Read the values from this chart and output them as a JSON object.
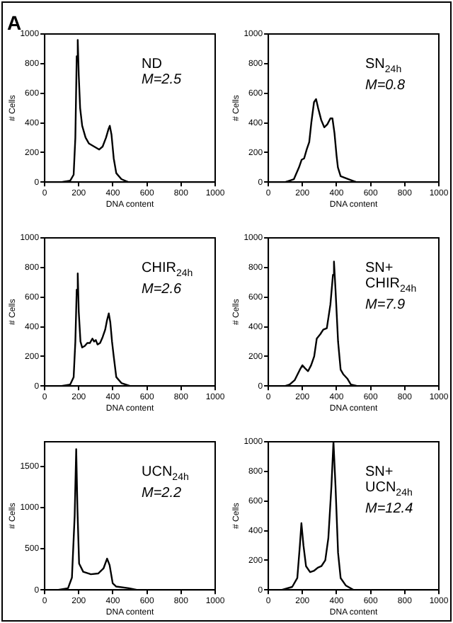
{
  "chart_data": [
    {
      "type": "line",
      "title": "A",
      "xlabel": "DNA content",
      "ylabel": "# Cells",
      "xlim": [
        0,
        1000
      ],
      "xticks": [
        0,
        200,
        400,
        600,
        800,
        1000
      ],
      "ylim": [
        0,
        1000
      ],
      "yticks": [
        0,
        200,
        400,
        600,
        800,
        1000
      ],
      "grid": false,
      "annotations": [
        "ND",
        "M=2.5"
      ],
      "series": [
        {
          "color": "#000000",
          "x": [
            0,
            100,
            150,
            170,
            180,
            188,
            194,
            200,
            208,
            220,
            240,
            260,
            290,
            320,
            340,
            360,
            375,
            382,
            392,
            405,
            420,
            450,
            490,
            550
          ],
          "values": [
            0,
            0,
            10,
            50,
            300,
            850,
            960,
            720,
            500,
            380,
            300,
            260,
            240,
            220,
            240,
            300,
            360,
            380,
            320,
            160,
            60,
            20,
            0,
            0
          ]
        }
      ]
    },
    {
      "type": "line",
      "xlabel": "DNA content",
      "ylabel": "# Cells",
      "xlim": [
        0,
        1000
      ],
      "xticks": [
        0,
        200,
        400,
        600,
        800,
        1000
      ],
      "ylim": [
        0,
        1000
      ],
      "yticks": [
        0,
        200,
        400,
        600,
        800,
        1000
      ],
      "grid": false,
      "annotations": [
        "SN$_{24h}$",
        "M=0.8"
      ],
      "series": [
        {
          "color": "#000000",
          "x": [
            0,
            100,
            150,
            180,
            195,
            210,
            225,
            240,
            252,
            268,
            280,
            292,
            310,
            328,
            346,
            364,
            376,
            388,
            400,
            408,
            424,
            470,
            515,
            560
          ],
          "values": [
            0,
            0,
            20,
            100,
            150,
            160,
            220,
            270,
            400,
            540,
            560,
            500,
            420,
            370,
            390,
            430,
            430,
            330,
            180,
            100,
            40,
            20,
            0,
            0
          ]
        }
      ]
    },
    {
      "type": "line",
      "xlabel": "DNA content",
      "ylabel": "# Cells",
      "xlim": [
        0,
        1000
      ],
      "xticks": [
        0,
        200,
        400,
        600,
        800,
        1000
      ],
      "ylim": [
        0,
        1000
      ],
      "yticks": [
        0,
        200,
        400,
        600,
        800,
        1000
      ],
      "grid": false,
      "annotations": [
        "CHIR$_{24h}$",
        "M=2.6"
      ],
      "series": [
        {
          "color": "#000000",
          "x": [
            0,
            100,
            150,
            170,
            180,
            188,
            194,
            200,
            210,
            220,
            235,
            250,
            265,
            280,
            290,
            300,
            310,
            325,
            340,
            355,
            365,
            376,
            385,
            395,
            405,
            420,
            450,
            500,
            550
          ],
          "values": [
            0,
            0,
            10,
            60,
            300,
            650,
            760,
            500,
            300,
            260,
            270,
            290,
            290,
            320,
            300,
            310,
            280,
            290,
            330,
            380,
            440,
            490,
            430,
            300,
            200,
            60,
            20,
            0,
            0
          ]
        }
      ]
    },
    {
      "type": "line",
      "xlabel": "DNA content",
      "ylabel": "# Cells",
      "xlim": [
        0,
        1000
      ],
      "xticks": [
        0,
        200,
        400,
        600,
        800,
        1000
      ],
      "ylim": [
        0,
        1000
      ],
      "yticks": [
        0,
        200,
        400,
        600,
        800,
        1000
      ],
      "grid": false,
      "annotations": [
        "SN+",
        "CHIR$_{24h}$",
        "M=7.9"
      ],
      "series": [
        {
          "color": "#000000",
          "x": [
            0,
            100,
            125,
            155,
            185,
            200,
            215,
            233,
            251,
            269,
            284,
            305,
            322,
            343,
            364,
            379,
            385,
            394,
            409,
            424,
            439,
            463,
            484,
            520
          ],
          "values": [
            0,
            0,
            10,
            40,
            110,
            140,
            120,
            100,
            140,
            200,
            320,
            350,
            380,
            390,
            550,
            750,
            840,
            650,
            300,
            110,
            80,
            50,
            10,
            0
          ]
        }
      ]
    },
    {
      "type": "line",
      "xlabel": "DNA content",
      "ylabel": "# Cells",
      "xlim": [
        0,
        1000
      ],
      "xticks": [
        0,
        200,
        400,
        600,
        800,
        1000
      ],
      "ylim": [
        0,
        1800
      ],
      "yticks": [
        0,
        500,
        1000,
        1500
      ],
      "grid": false,
      "annotations": [
        "UCN$_{24h}$",
        "M=2.2"
      ],
      "series": [
        {
          "color": "#000000",
          "x": [
            0,
            80,
            137,
            160,
            176,
            185,
            192,
            202,
            226,
            271,
            315,
            345,
            366,
            381,
            399,
            420,
            494,
            540
          ],
          "values": [
            0,
            0,
            20,
            150,
            900,
            1710,
            1000,
            320,
            220,
            190,
            200,
            260,
            380,
            300,
            80,
            40,
            20,
            0
          ]
        }
      ]
    },
    {
      "type": "line",
      "xlabel": "DNA content",
      "ylabel": "# Cells",
      "xlim": [
        0,
        1000
      ],
      "xticks": [
        0,
        200,
        400,
        600,
        800,
        1000
      ],
      "ylim": [
        0,
        1000
      ],
      "yticks": [
        0,
        200,
        400,
        600,
        800,
        1000
      ],
      "grid": false,
      "annotations": [
        "SN+",
        "UCN$_{24h}$",
        "M=12.4"
      ],
      "series": [
        {
          "color": "#000000",
          "x": [
            0,
            80,
            140,
            170,
            185,
            194,
            206,
            221,
            245,
            269,
            290,
            311,
            334,
            352,
            370,
            382,
            394,
            409,
            424,
            454,
            500,
            540
          ],
          "values": [
            0,
            0,
            20,
            80,
            300,
            450,
            300,
            160,
            120,
            130,
            150,
            160,
            200,
            350,
            700,
            1000,
            700,
            250,
            80,
            30,
            0,
            0
          ]
        }
      ]
    }
  ]
}
